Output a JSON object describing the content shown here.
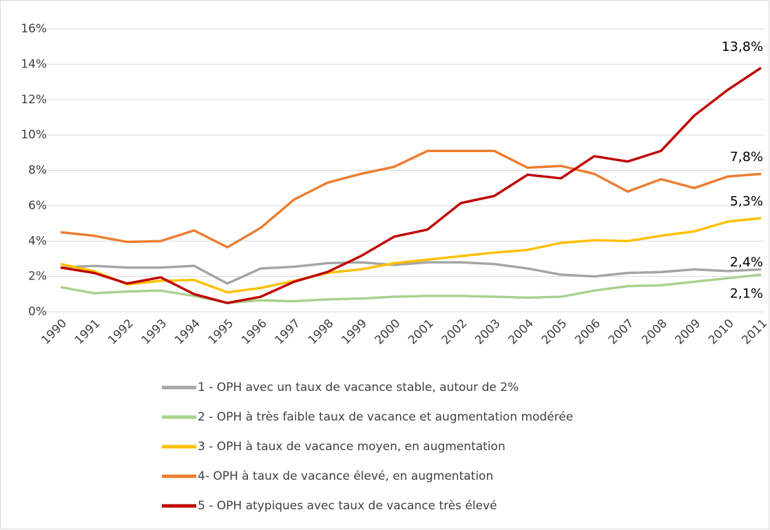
{
  "chart_data": {
    "type": "line",
    "categories": [
      "1990",
      "1991",
      "1992",
      "1993",
      "1994",
      "1995",
      "1996",
      "1997",
      "1998",
      "1999",
      "2000",
      "2001",
      "2002",
      "2003",
      "2004",
      "2005",
      "2006",
      "2007",
      "2008",
      "2009",
      "2010",
      "2011"
    ],
    "series": [
      {
        "name": "1 - OPH avec un taux de vacance stable, autour de 2%",
        "color": "#a5a5a5",
        "values": [
          2.5,
          2.6,
          2.5,
          2.5,
          2.6,
          1.6,
          2.45,
          2.55,
          2.75,
          2.8,
          2.65,
          2.8,
          2.8,
          2.7,
          2.45,
          2.1,
          2.0,
          2.2,
          2.25,
          2.4,
          2.3,
          2.4
        ],
        "value_labels": [
          null,
          null,
          null,
          null,
          null,
          null,
          null,
          null,
          null,
          null,
          null,
          null,
          null,
          null,
          null,
          null,
          null,
          null,
          null,
          null,
          null,
          "2,4%"
        ]
      },
      {
        "name": "2 - OPH à très faible taux de vacance et augmentation modérée",
        "color": "#a9d18e",
        "values": [
          1.4,
          1.05,
          1.15,
          1.2,
          0.9,
          0.5,
          0.65,
          0.6,
          0.7,
          0.75,
          0.85,
          0.9,
          0.9,
          0.85,
          0.8,
          0.85,
          1.2,
          1.45,
          1.5,
          1.7,
          1.9,
          2.1
        ],
        "value_labels": [
          null,
          null,
          null,
          null,
          null,
          null,
          null,
          null,
          null,
          null,
          null,
          null,
          null,
          null,
          null,
          null,
          null,
          null,
          null,
          null,
          null,
          "2,1%"
        ]
      },
      {
        "name": "3 - OPH à taux de vacance moyen, en augmentation",
        "color": "#ffc000",
        "values": [
          2.7,
          2.3,
          1.55,
          1.75,
          1.8,
          1.1,
          1.35,
          1.75,
          2.2,
          2.4,
          2.75,
          2.95,
          3.15,
          3.35,
          3.5,
          3.9,
          4.05,
          4.0,
          4.3,
          4.55,
          5.1,
          5.3
        ],
        "value_labels": [
          null,
          null,
          null,
          null,
          null,
          null,
          null,
          null,
          null,
          null,
          null,
          null,
          null,
          null,
          null,
          null,
          null,
          null,
          null,
          null,
          null,
          "5,3%"
        ]
      },
      {
        "name": "4- OPH à taux de vacance élevé, en augmentation",
        "color": "#ed7d31",
        "values": [
          4.5,
          4.3,
          3.95,
          4.0,
          4.6,
          3.65,
          4.75,
          6.35,
          7.3,
          7.8,
          8.2,
          9.1,
          9.1,
          9.1,
          8.15,
          8.25,
          7.8,
          6.8,
          7.5,
          7.0,
          7.65,
          7.8
        ],
        "value_labels": [
          null,
          null,
          null,
          null,
          null,
          null,
          null,
          null,
          null,
          null,
          null,
          null,
          null,
          null,
          null,
          null,
          null,
          null,
          null,
          null,
          null,
          "7,8%"
        ]
      },
      {
        "name": "5 - OPH atypiques avec taux de vacance très élevé",
        "color": "#c00000",
        "values": [
          2.5,
          2.2,
          1.6,
          1.95,
          1.0,
          0.5,
          0.85,
          1.7,
          2.25,
          3.15,
          4.25,
          4.65,
          6.15,
          6.55,
          7.75,
          7.55,
          8.8,
          8.5,
          9.1,
          11.1,
          12.55,
          13.8
        ],
        "value_labels": [
          null,
          null,
          null,
          null,
          null,
          null,
          null,
          null,
          null,
          null,
          null,
          null,
          null,
          null,
          null,
          null,
          null,
          null,
          null,
          null,
          null,
          "13,8%"
        ]
      }
    ],
    "ylim": [
      0,
      16
    ],
    "yticks": [
      {
        "value": 0,
        "label": "0%"
      },
      {
        "value": 2,
        "label": "2%"
      },
      {
        "value": 4,
        "label": "4%"
      },
      {
        "value": 6,
        "label": "6%"
      },
      {
        "value": 8,
        "label": "8%"
      },
      {
        "value": 10,
        "label": "10%"
      },
      {
        "value": 12,
        "label": "12%"
      },
      {
        "value": 14,
        "label": "14%"
      },
      {
        "value": 16,
        "label": "16%"
      }
    ],
    "grid": true,
    "legend": "bottom"
  }
}
